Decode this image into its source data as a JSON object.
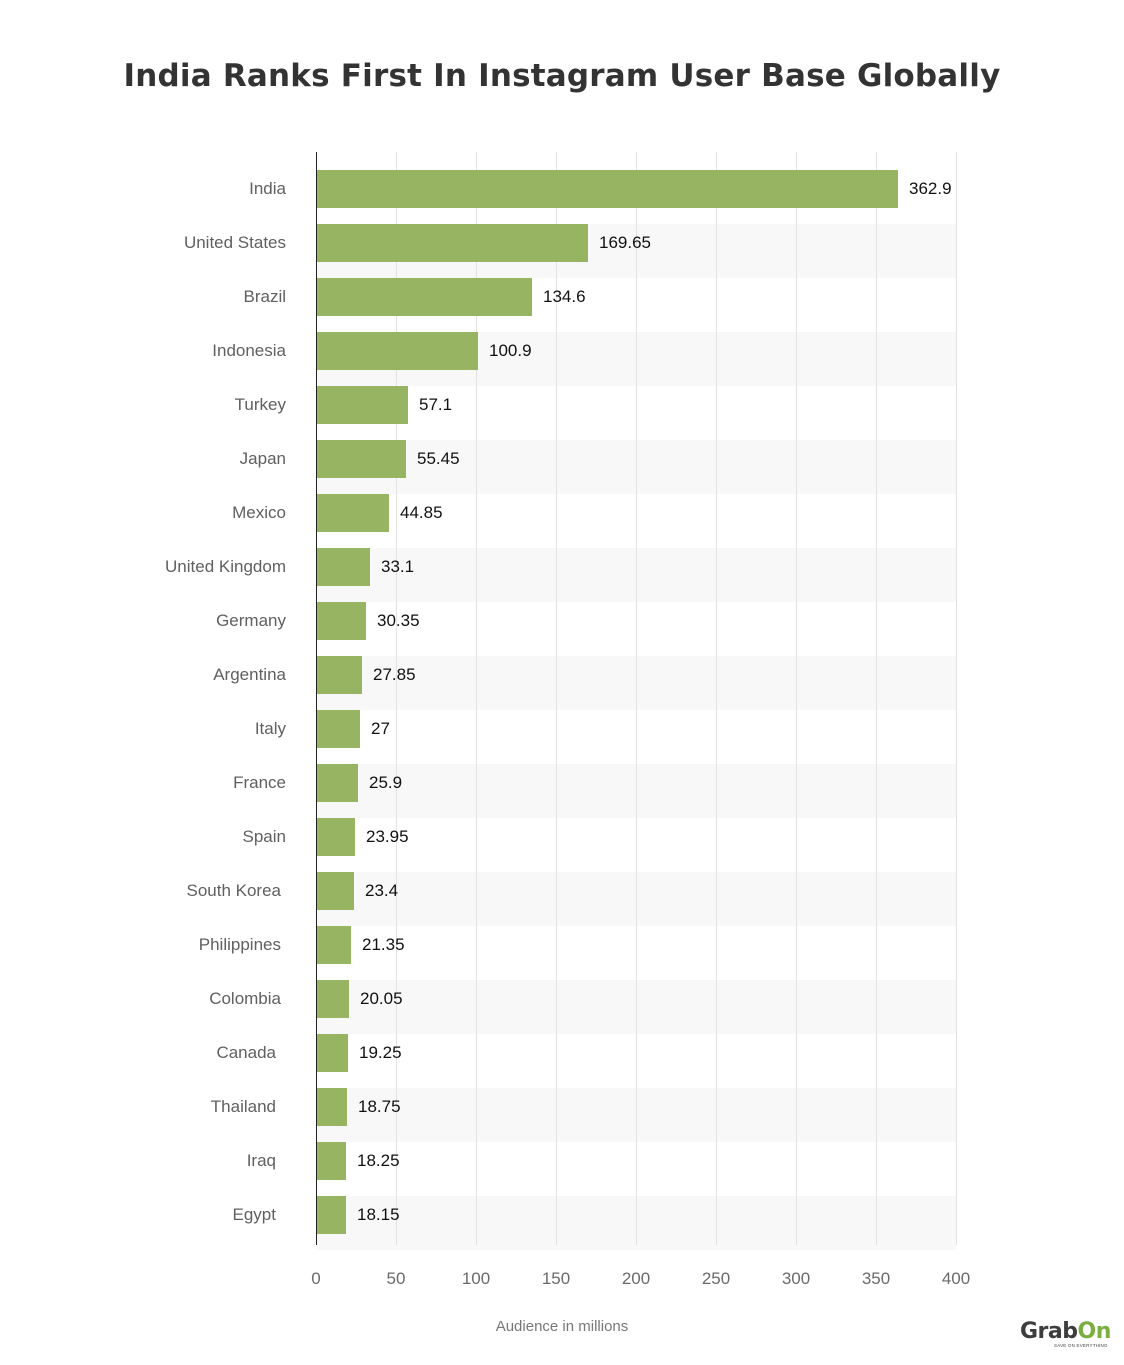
{
  "header": {
    "title": "India Ranks First In Instagram User Base Globally"
  },
  "axis": {
    "xlabel": "Audience in millions",
    "ticks": [
      "0",
      "50",
      "100",
      "150",
      "200",
      "250",
      "300",
      "350",
      "400"
    ]
  },
  "categories": [
    {
      "label": "India",
      "value": "362.9"
    },
    {
      "label": "United States",
      "value": "169.65"
    },
    {
      "label": "Brazil",
      "value": "134.6"
    },
    {
      "label": "Indonesia",
      "value": "100.9"
    },
    {
      "label": "Turkey",
      "value": "57.1"
    },
    {
      "label": "Japan",
      "value": "55.45"
    },
    {
      "label": "Mexico",
      "value": "44.85"
    },
    {
      "label": "United Kingdom",
      "value": "33.1"
    },
    {
      "label": "Germany",
      "value": "30.35"
    },
    {
      "label": "Argentina",
      "value": "27.85"
    },
    {
      "label": "Italy",
      "value": "27"
    },
    {
      "label": "France",
      "value": "25.9"
    },
    {
      "label": "Spain",
      "value": "23.95"
    },
    {
      "label": "South Korea",
      "value": "23.4"
    },
    {
      "label": "Philippines",
      "value": "21.35"
    },
    {
      "label": "Colombia",
      "value": "20.05"
    },
    {
      "label": "Canada",
      "value": "19.25"
    },
    {
      "label": "Thailand",
      "value": "18.75"
    },
    {
      "label": "Iraq",
      "value": "18.25"
    },
    {
      "label": "Egypt",
      "value": "18.15"
    }
  ],
  "brand": {
    "logo_part1": "Grab",
    "logo_part2": "On",
    "tagline": "SAVE ON EVERYTHING"
  },
  "colors": {
    "bar": "#97b463",
    "band": "#f8f8f8",
    "title": "#333333",
    "brand_green": "#7cae3f"
  },
  "chart_data": {
    "type": "bar",
    "orientation": "horizontal",
    "title": "India Ranks First In Instagram User Base Globally",
    "xlabel": "Audience in millions",
    "ylabel": "",
    "xlim": [
      0,
      400
    ],
    "xticks": [
      0,
      50,
      100,
      150,
      200,
      250,
      300,
      350,
      400
    ],
    "grid": true,
    "legend": null,
    "categories": [
      "India",
      "United States",
      "Brazil",
      "Indonesia",
      "Turkey",
      "Japan",
      "Mexico",
      "United Kingdom",
      "Germany",
      "Argentina",
      "Italy",
      "France",
      "Spain",
      "South Korea",
      "Philippines",
      "Colombia",
      "Canada",
      "Thailand",
      "Iraq",
      "Egypt"
    ],
    "values": [
      362.9,
      169.65,
      134.6,
      100.9,
      57.1,
      55.45,
      44.85,
      33.1,
      30.35,
      27.85,
      27,
      25.9,
      23.95,
      23.4,
      21.35,
      20.05,
      19.25,
      18.75,
      18.25,
      18.15
    ],
    "data_labels": true
  }
}
